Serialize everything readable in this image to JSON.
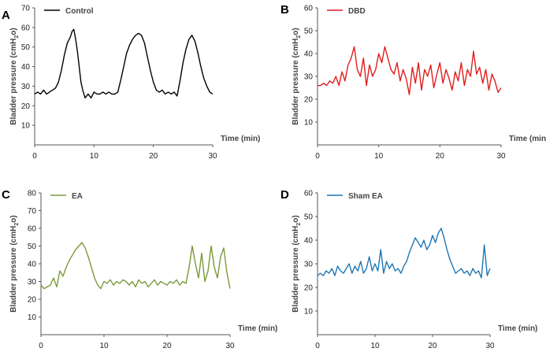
{
  "chart_data": [
    {
      "panel_letter": "A",
      "type": "line",
      "ylabel_main": "Bladder pressure (cmH",
      "ylabel_sub": "2",
      "ylabel_end": "o)",
      "xlabel": "Time (min)",
      "xlim": [
        0,
        30
      ],
      "ylim": [
        0,
        70
      ],
      "xticks": [
        0,
        10,
        20,
        30
      ],
      "yticks": [
        10,
        20,
        30,
        40,
        50,
        60,
        70
      ],
      "legend_placement": "top-left",
      "series": [
        {
          "name": "Control",
          "color": "#000000",
          "x": [
            0,
            0.5,
            1,
            1.5,
            2,
            2.5,
            3,
            3.5,
            4,
            4.5,
            5,
            5.5,
            6,
            6.3,
            6.6,
            6.9,
            7.2,
            7.5,
            7.8,
            8.1,
            8.5,
            9,
            9.5,
            10,
            10.5,
            11,
            11.5,
            12,
            12.5,
            13,
            13.5,
            14,
            14.5,
            15,
            15.5,
            16,
            16.5,
            17,
            17.5,
            18,
            18.5,
            19,
            19.5,
            20,
            20.5,
            21,
            21.5,
            22,
            22.5,
            23,
            23.5,
            24,
            24.5,
            25,
            25.5,
            26,
            26.5,
            27,
            27.5,
            28,
            28.5,
            29,
            29.5,
            30
          ],
          "y": [
            26,
            27,
            26,
            28,
            26,
            27,
            28,
            29,
            32,
            38,
            46,
            52,
            55,
            58,
            59,
            54,
            48,
            40,
            32,
            28,
            24,
            26,
            24,
            27,
            26,
            26,
            27,
            26,
            27,
            26,
            26,
            27,
            33,
            40,
            47,
            51,
            54,
            56,
            57,
            56,
            52,
            45,
            38,
            32,
            28,
            27,
            28,
            26,
            27,
            26,
            27,
            25,
            33,
            42,
            49,
            54,
            56,
            53,
            47,
            40,
            34,
            30,
            27,
            26
          ]
        }
      ]
    },
    {
      "panel_letter": "B",
      "type": "line",
      "ylabel_main": "Bladder pressure (cmH",
      "ylabel_sub": "2",
      "ylabel_end": "o)",
      "xlabel": "Time (min)",
      "xlim": [
        0,
        30
      ],
      "ylim": [
        0,
        60
      ],
      "xticks": [
        0,
        10,
        20,
        30
      ],
      "yticks": [
        10,
        20,
        30,
        40,
        50,
        60
      ],
      "legend_placement": "top-left",
      "series": [
        {
          "name": "DBD",
          "color": "#e01e1e",
          "x": [
            0,
            0.5,
            1,
            1.5,
            2,
            2.5,
            3,
            3.5,
            4,
            4.5,
            5,
            5.5,
            6,
            6.5,
            7,
            7.5,
            8,
            8.5,
            9,
            9.5,
            10,
            10.5,
            11,
            11.5,
            12,
            12.5,
            13,
            13.5,
            14,
            14.5,
            15,
            15.5,
            16,
            16.5,
            17,
            17.5,
            18,
            18.5,
            19,
            19.5,
            20,
            20.5,
            21,
            21.5,
            22,
            22.5,
            23,
            23.5,
            24,
            24.5,
            25,
            25.5,
            26,
            26.5,
            27,
            27.5,
            28,
            28.5,
            29,
            29.5,
            30
          ],
          "y": [
            26,
            26,
            27,
            26,
            28,
            27,
            30,
            26,
            32,
            28,
            35,
            38,
            43,
            33,
            30,
            38,
            26,
            35,
            30,
            33,
            40,
            36,
            43,
            38,
            33,
            31,
            36,
            28,
            33,
            29,
            22,
            34,
            27,
            36,
            24,
            33,
            30,
            35,
            25,
            31,
            36,
            27,
            33,
            29,
            24,
            32,
            28,
            36,
            26,
            33,
            30,
            41,
            31,
            34,
            27,
            33,
            24,
            31,
            28,
            23,
            25
          ]
        }
      ]
    },
    {
      "panel_letter": "C",
      "type": "line",
      "ylabel_main": "Bladder pressure (cmH",
      "ylabel_sub": "2",
      "ylabel_end": "o)",
      "xlabel": "Time (min)",
      "xlim": [
        0,
        30
      ],
      "ylim": [
        0,
        80
      ],
      "xticks": [
        0,
        10,
        20,
        30
      ],
      "yticks": [
        10,
        20,
        30,
        40,
        50,
        60,
        70,
        80
      ],
      "legend_placement": "top-left",
      "series": [
        {
          "name": "EA",
          "color": "#7a9a3a",
          "x": [
            0,
            0.5,
            1,
            1.5,
            2,
            2.5,
            3,
            3.5,
            4,
            4.5,
            5,
            5.5,
            6,
            6.5,
            7,
            7.5,
            8,
            8.5,
            9,
            9.5,
            10,
            10.5,
            11,
            11.5,
            12,
            12.5,
            13,
            13.5,
            14,
            14.5,
            15,
            15.5,
            16,
            16.5,
            17,
            17.5,
            18,
            18.5,
            19,
            19.5,
            20,
            20.5,
            21,
            21.5,
            22,
            22.5,
            23,
            23.5,
            24,
            24.5,
            25,
            25.5,
            26,
            26.5,
            27,
            27.5,
            28,
            28.5,
            29,
            29.5,
            30
          ],
          "y": [
            28,
            26,
            27,
            28,
            32,
            27,
            36,
            33,
            38,
            42,
            45,
            48,
            50,
            52,
            49,
            44,
            38,
            32,
            28,
            26,
            30,
            29,
            31,
            28,
            30,
            29,
            31,
            30,
            28,
            30,
            27,
            31,
            29,
            30,
            27,
            29,
            31,
            28,
            30,
            29,
            28,
            30,
            29,
            31,
            28,
            30,
            29,
            38,
            50,
            40,
            32,
            46,
            30,
            36,
            50,
            38,
            32,
            44,
            49,
            35,
            26
          ]
        }
      ]
    },
    {
      "panel_letter": "D",
      "type": "line",
      "ylabel_main": "Bladder pressure (cmH",
      "ylabel_sub": "2",
      "ylabel_end": "o)",
      "xlabel": "Time (min)",
      "xlim": [
        0,
        30
      ],
      "ylim": [
        0,
        60
      ],
      "xticks": [
        0,
        10,
        20,
        30
      ],
      "yticks": [
        10,
        20,
        30,
        40,
        50,
        60
      ],
      "legend_placement": "top-left",
      "series": [
        {
          "name": "Sham EA",
          "color": "#1f77b4",
          "x": [
            0,
            0.5,
            1,
            1.5,
            2,
            2.5,
            3,
            3.5,
            4,
            4.5,
            5,
            5.5,
            6,
            6.5,
            7,
            7.5,
            8,
            8.5,
            9,
            9.5,
            10,
            10.5,
            11,
            11.5,
            12,
            12.5,
            13,
            13.5,
            14,
            14.5,
            15,
            15.5,
            16,
            16.5,
            17,
            17.5,
            18,
            18.5,
            19,
            19.5,
            20,
            20.5,
            21,
            21.5,
            22,
            22.5,
            23,
            23.5,
            24,
            24.5,
            25,
            25.5,
            26,
            26.5,
            27,
            27.5,
            28,
            28.5,
            29,
            29.5,
            30
          ],
          "y": [
            25,
            26,
            25,
            27,
            26,
            28,
            25,
            29,
            27,
            26,
            28,
            30,
            26,
            29,
            27,
            31,
            26,
            28,
            33,
            27,
            30,
            27,
            36,
            26,
            31,
            28,
            30,
            27,
            28,
            26,
            29,
            31,
            35,
            38,
            41,
            39,
            37,
            40,
            36,
            38,
            42,
            39,
            43,
            45,
            41,
            36,
            32,
            29,
            26,
            27,
            28,
            26,
            27,
            25,
            28,
            26,
            27,
            24,
            38,
            25,
            28
          ]
        }
      ]
    }
  ]
}
